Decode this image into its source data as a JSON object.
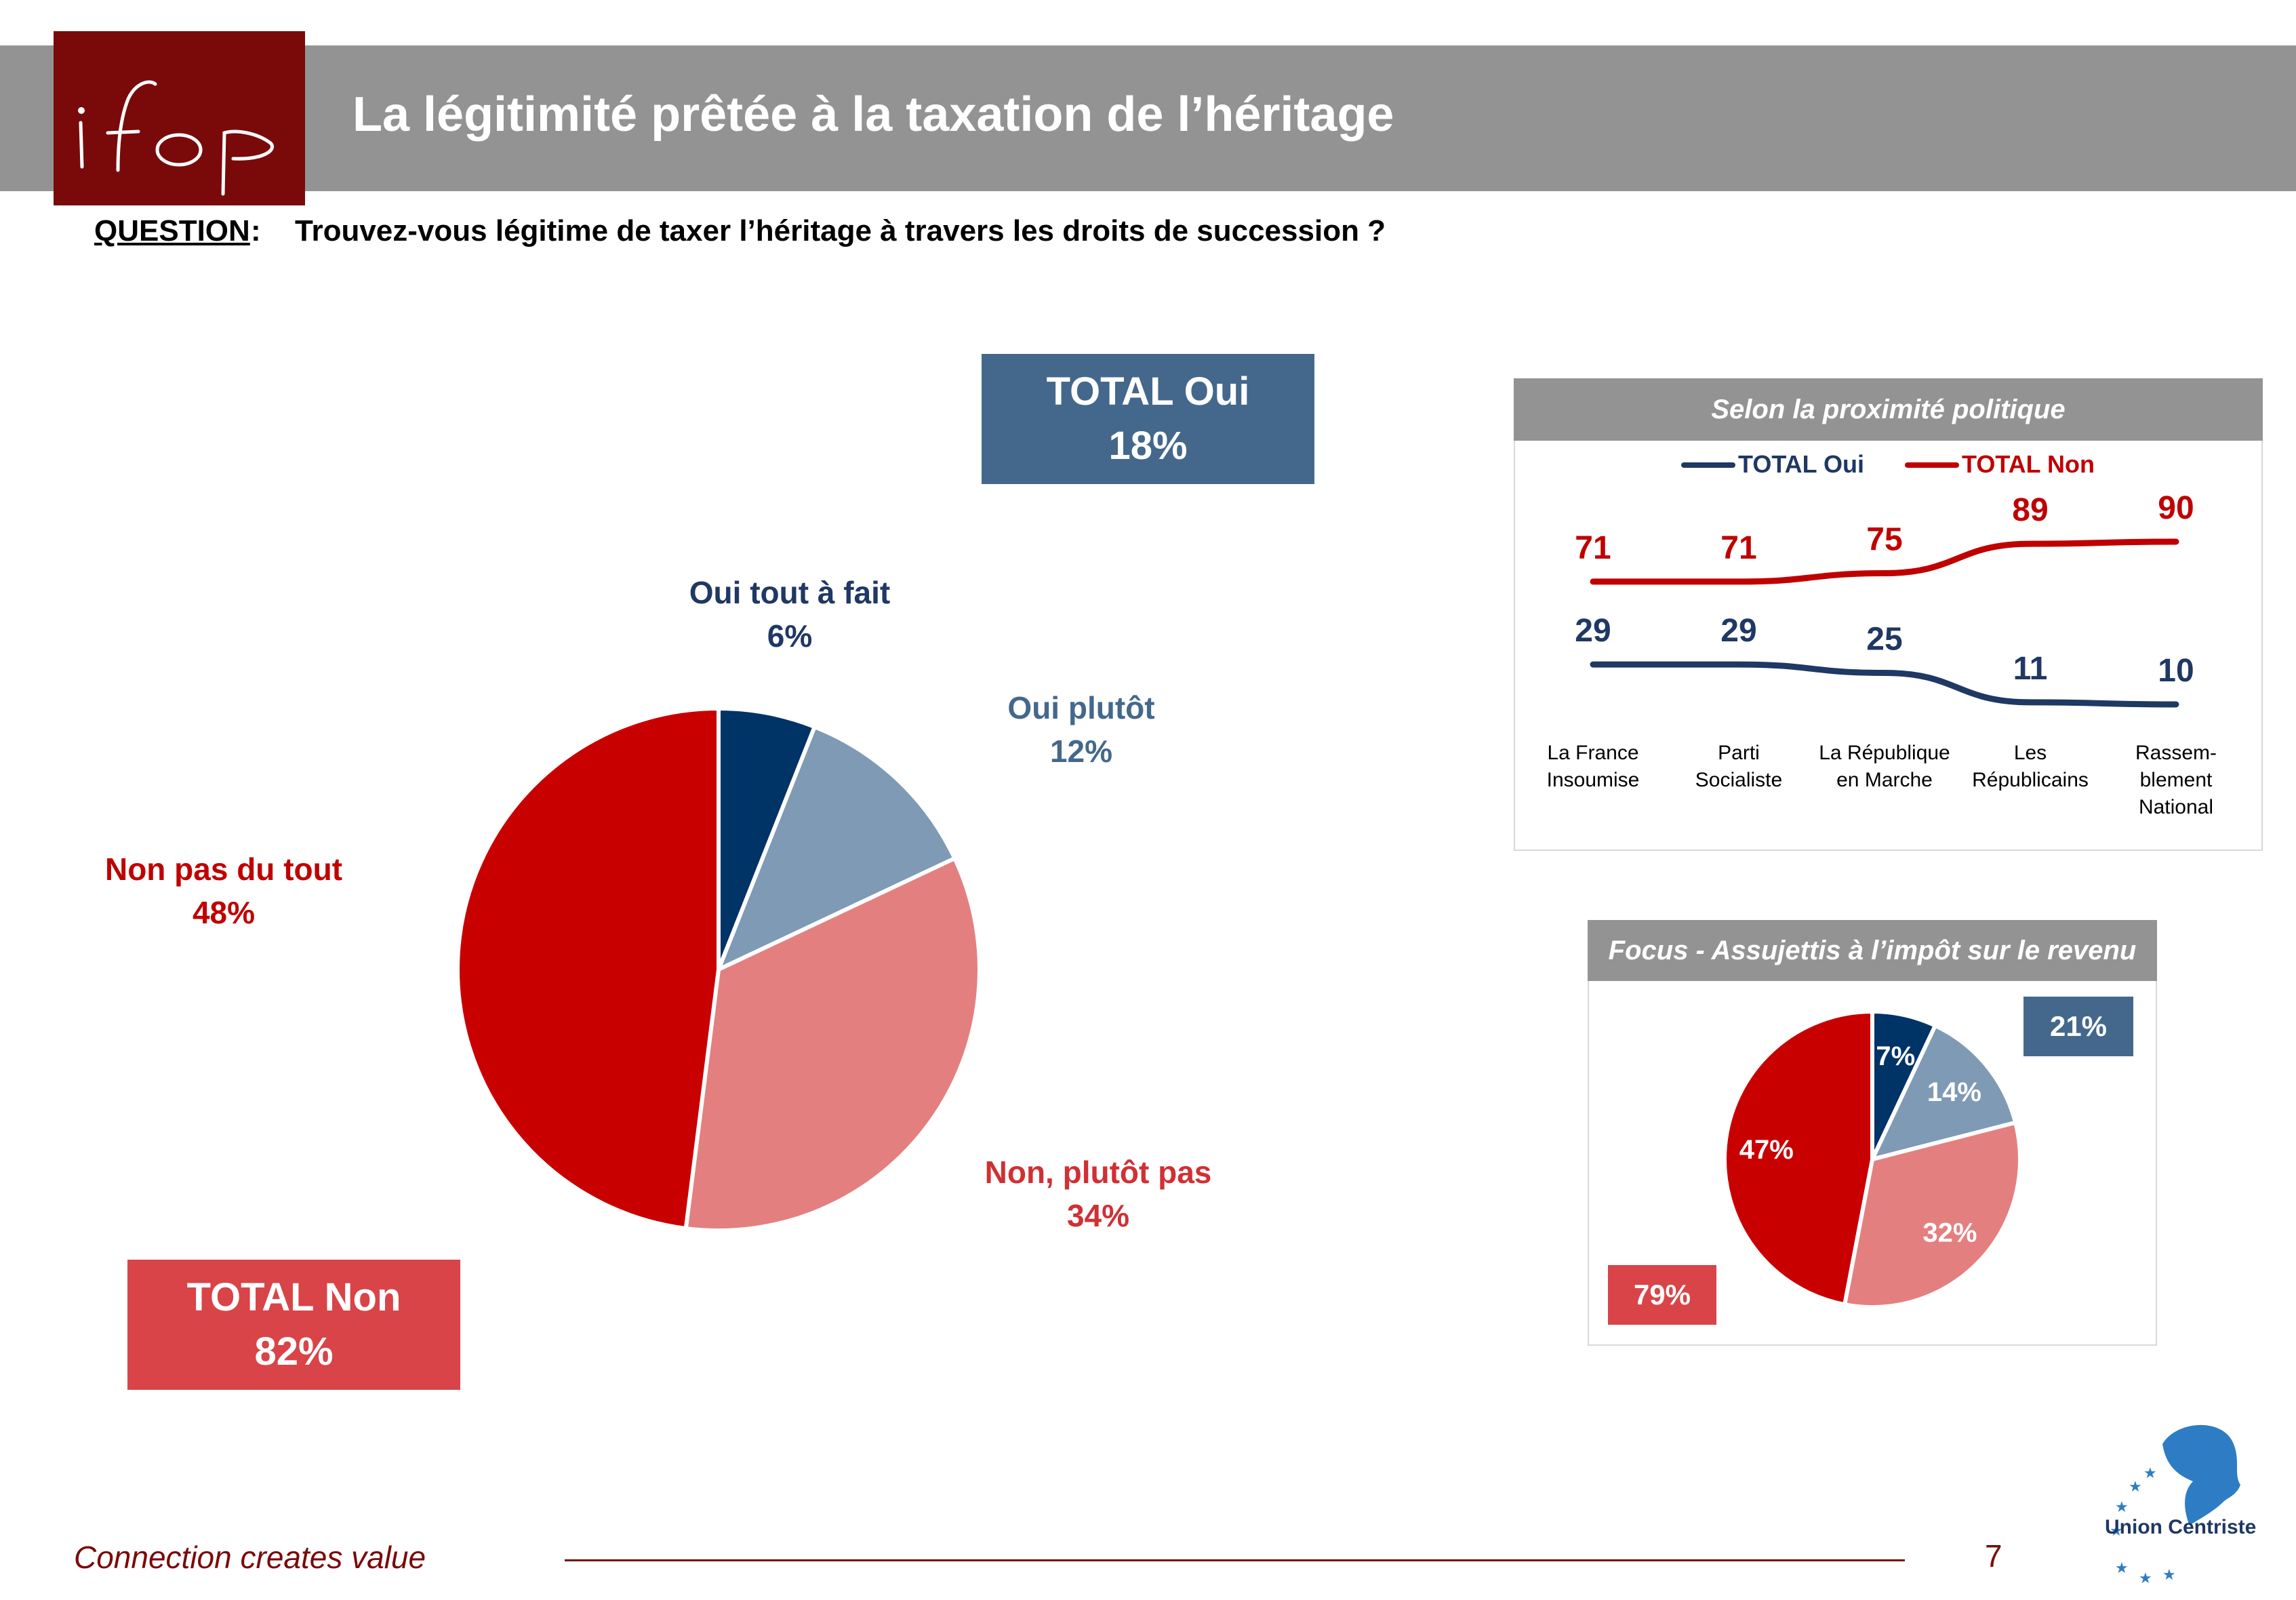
{
  "header": {
    "title": "La légitimité prêtée à la taxation de l’héritage",
    "logo_text": "ifop"
  },
  "question": {
    "label": "QUESTION",
    "colon": ":",
    "text": "Trouvez-vous légitime de taxer l’héritage à travers les droits de succession ?"
  },
  "totals": {
    "oui_label": "TOTAL Oui",
    "oui_value": "18%",
    "non_label": "TOTAL Non",
    "non_value": "82%"
  },
  "colors": {
    "brand": "#7a0a0a",
    "oui_tout": "#003366",
    "oui_plutot": "#7f9ab5",
    "non_plutot": "#e47f80",
    "non_tout": "#c90000",
    "total_oui": "#44688c",
    "total_non": "#d84448"
  },
  "chart_data": [
    {
      "type": "pie",
      "categories": [
        "Oui tout à fait",
        "Oui plutôt",
        "Non, plutôt pas",
        "Non pas du tout"
      ],
      "values": [
        6,
        12,
        34,
        48
      ],
      "labels": [
        "6%",
        "12%",
        "34%",
        "48%"
      ]
    },
    {
      "type": "line",
      "title": "Selon la proximité politique",
      "categories": [
        [
          "La France",
          "Insoumise"
        ],
        [
          "Parti",
          "Socialiste"
        ],
        [
          "La République",
          "en Marche"
        ],
        [
          "Les",
          "Républicains"
        ],
        [
          "Rassem-",
          "blement",
          "National"
        ]
      ],
      "series": [
        {
          "name": "TOTAL Oui",
          "values": [
            29,
            29,
            25,
            11,
            10
          ],
          "color": "#1f3864"
        },
        {
          "name": "TOTAL Non",
          "values": [
            71,
            71,
            75,
            89,
            90
          ],
          "color": "#c00000"
        }
      ],
      "legend": "top"
    },
    {
      "type": "pie",
      "title": "Focus - Assujettis à l’impôt sur le revenu",
      "categories": [
        "Oui tout à fait",
        "Oui plutôt",
        "Non, plutôt pas",
        "Non pas du tout"
      ],
      "values": [
        7,
        14,
        32,
        47
      ],
      "labels": [
        "7%",
        "14%",
        "32%",
        "47%"
      ],
      "total_oui": "21%",
      "total_non": "79%"
    }
  ],
  "footer": {
    "tagline": "Connection creates value",
    "page_number": "7",
    "partner": "Union Centriste"
  }
}
